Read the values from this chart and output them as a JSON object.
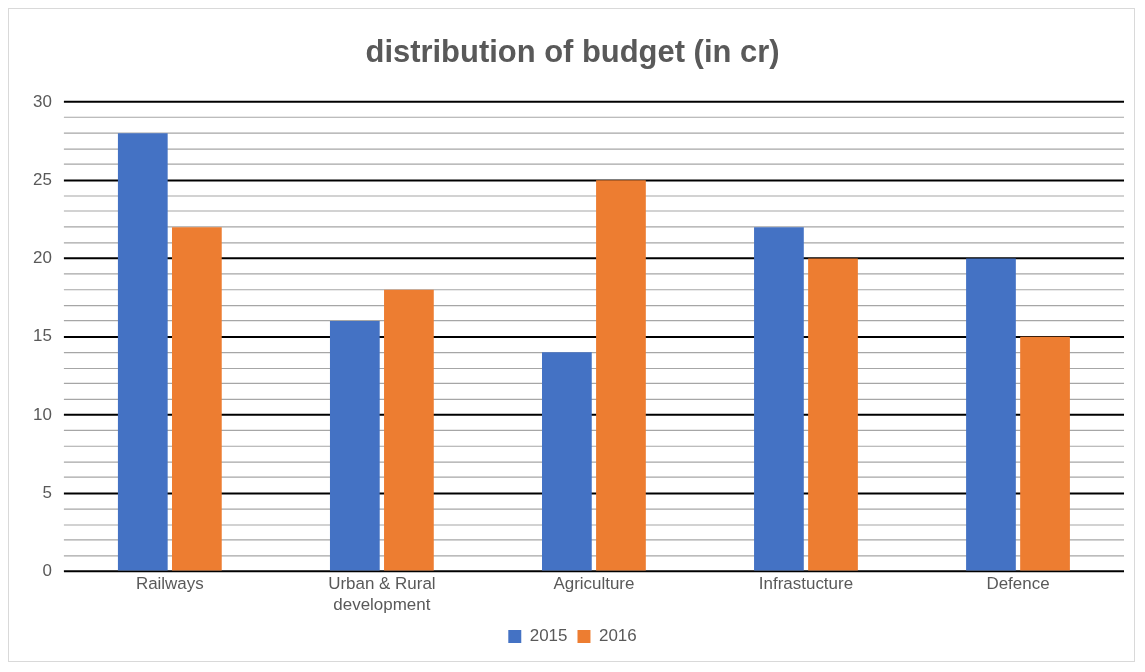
{
  "chart_data": {
    "type": "bar",
    "title": "distribution of budget (in cr)",
    "categories": [
      "Railways",
      "Urban & Rural development",
      "Agriculture",
      "Infrastucture",
      "Defence"
    ],
    "series": [
      {
        "name": "2015",
        "color": "#4472c4",
        "values": [
          28,
          16,
          14,
          22,
          20
        ]
      },
      {
        "name": "2016",
        "color": "#ed7d31",
        "values": [
          22,
          18,
          25,
          20,
          15
        ]
      }
    ],
    "ylim": [
      0,
      30
    ],
    "yticks": [
      0,
      {
        "value": 1,
        "label": null
      },
      {
        "value": 2,
        "label": null
      },
      {
        "value": 3,
        "label": null
      },
      {
        "value": 4,
        "label": null
      },
      5,
      {
        "value": 6,
        "label": null
      },
      {
        "value": 7,
        "label": null
      },
      {
        "value": 8,
        "label": null
      },
      {
        "value": 9,
        "label": null
      },
      10,
      {
        "value": 11,
        "label": null
      },
      {
        "value": 12,
        "label": null
      },
      {
        "value": 13,
        "label": null
      },
      {
        "value": 14,
        "label": null
      },
      15,
      {
        "value": 16,
        "label": null
      },
      {
        "value": 17,
        "label": null
      },
      {
        "value": 18,
        "label": null
      },
      {
        "value": 19,
        "label": null
      },
      20,
      {
        "value": 21,
        "label": null
      },
      {
        "value": 22,
        "label": null
      },
      {
        "value": 23,
        "label": null
      },
      {
        "value": 24,
        "label": null
      },
      25,
      {
        "value": 26,
        "label": null
      },
      {
        "value": 27,
        "label": null
      },
      {
        "value": 28,
        "label": null
      },
      {
        "value": 29,
        "label": null
      },
      30
    ],
    "grid": "y",
    "legend": "bottom"
  }
}
